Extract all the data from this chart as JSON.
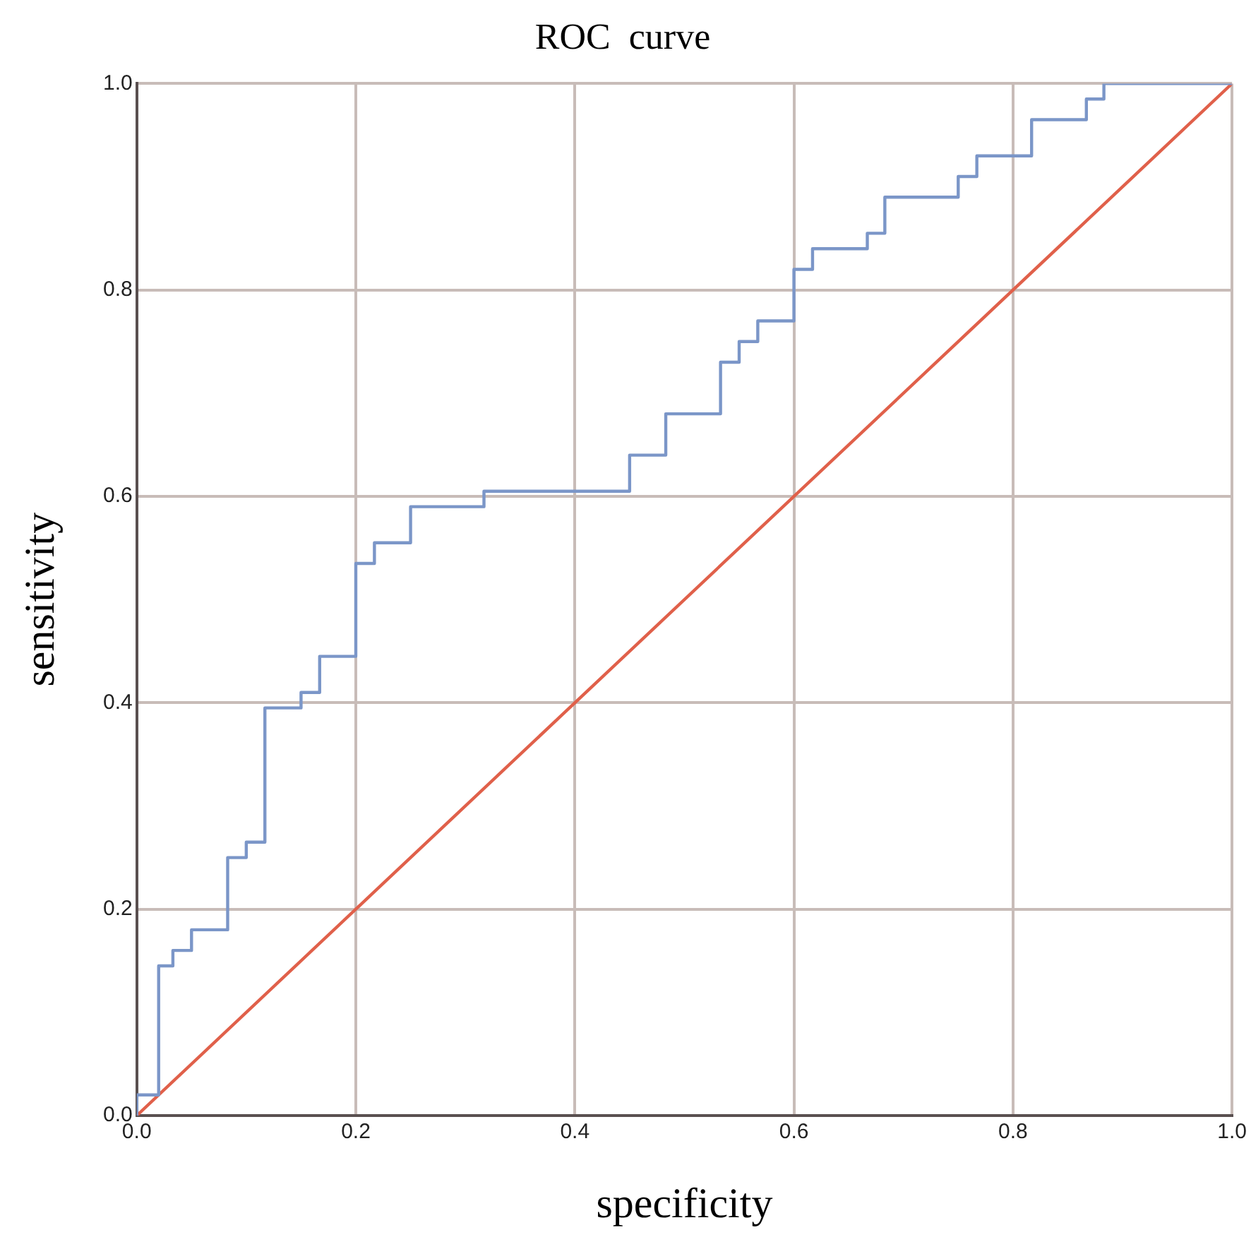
{
  "chart_data": {
    "type": "line",
    "title": "ROC  curve",
    "xlabel": "specificity",
    "ylabel": "sensitivity",
    "xlim": [
      0,
      1
    ],
    "ylim": [
      0,
      1
    ],
    "xticks": [
      {
        "value": 0,
        "label": "0.0"
      },
      {
        "value": 0.2,
        "label": "0.2"
      },
      {
        "value": 0.4,
        "label": "0.4"
      },
      {
        "value": 0.6,
        "label": "0.6"
      },
      {
        "value": 0.8,
        "label": "0.8"
      },
      {
        "value": 1,
        "label": "1.0"
      }
    ],
    "yticks": [
      {
        "value": 0,
        "label": "0.0"
      },
      {
        "value": 0.2,
        "label": "0.2"
      },
      {
        "value": 0.4,
        "label": "0.4"
      },
      {
        "value": 0.6,
        "label": "0.6"
      },
      {
        "value": 0.8,
        "label": "0.8"
      },
      {
        "value": 1,
        "label": "1.0"
      }
    ],
    "grid": true,
    "legend": false,
    "marker": "none",
    "line_style": "solid",
    "series": [
      {
        "color": "#7b96c8",
        "x": [
          0,
          0,
          0.02,
          0.02,
          0.033,
          0.033,
          0.05,
          0.05,
          0.083,
          0.083,
          0.1,
          0.1,
          0.117,
          0.117,
          0.15,
          0.15,
          0.167,
          0.167,
          0.2,
          0.2,
          0.217,
          0.217,
          0.25,
          0.25,
          0.317,
          0.317,
          0.45,
          0.45,
          0.483,
          0.483,
          0.533,
          0.533,
          0.55,
          0.55,
          0.567,
          0.567,
          0.6,
          0.6,
          0.617,
          0.617,
          0.667,
          0.667,
          0.683,
          0.683,
          0.75,
          0.75,
          0.767,
          0.767,
          0.817,
          0.817,
          0.867,
          0.867,
          0.883,
          0.883,
          1
        ],
        "values": [
          0,
          0.02,
          0.02,
          0.145,
          0.145,
          0.16,
          0.16,
          0.18,
          0.18,
          0.25,
          0.25,
          0.265,
          0.265,
          0.395,
          0.395,
          0.41,
          0.41,
          0.445,
          0.445,
          0.535,
          0.535,
          0.555,
          0.555,
          0.59,
          0.59,
          0.605,
          0.605,
          0.64,
          0.64,
          0.68,
          0.68,
          0.73,
          0.73,
          0.75,
          0.75,
          0.77,
          0.77,
          0.82,
          0.82,
          0.84,
          0.84,
          0.855,
          0.855,
          0.89,
          0.89,
          0.91,
          0.91,
          0.93,
          0.93,
          0.965,
          0.965,
          0.985,
          0.985,
          1,
          1
        ]
      },
      {
        "color": "#e0604a",
        "x": [
          0,
          1
        ],
        "values": [
          0,
          1
        ]
      }
    ]
  }
}
